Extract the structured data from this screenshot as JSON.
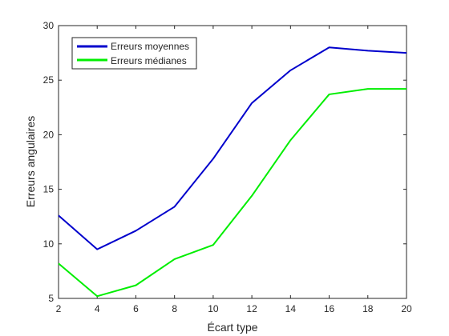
{
  "chart_data": {
    "type": "line",
    "title": "",
    "xlabel": "Écart type",
    "ylabel": "Erreurs angulaires",
    "x": [
      2,
      4,
      6,
      8,
      10,
      12,
      14,
      16,
      18,
      20
    ],
    "xlim": [
      2,
      20
    ],
    "ylim": [
      5,
      30
    ],
    "xticks": [
      "2",
      "4",
      "6",
      "8",
      "10",
      "12",
      "14",
      "16",
      "18",
      "20"
    ],
    "yticks": [
      "5",
      "10",
      "15",
      "20",
      "25",
      "30"
    ],
    "grid": false,
    "legend_position": "top-left",
    "series": [
      {
        "name": "Erreurs moyennes",
        "color": "#0000cc",
        "values": [
          12.6,
          9.5,
          11.2,
          13.4,
          17.8,
          22.9,
          25.9,
          28.0,
          27.7,
          27.5
        ]
      },
      {
        "name": "Erreurs médianes",
        "color": "#00ee00",
        "values": [
          8.2,
          5.2,
          6.2,
          8.6,
          9.9,
          14.4,
          19.5,
          23.7,
          24.2,
          24.2
        ]
      }
    ]
  }
}
